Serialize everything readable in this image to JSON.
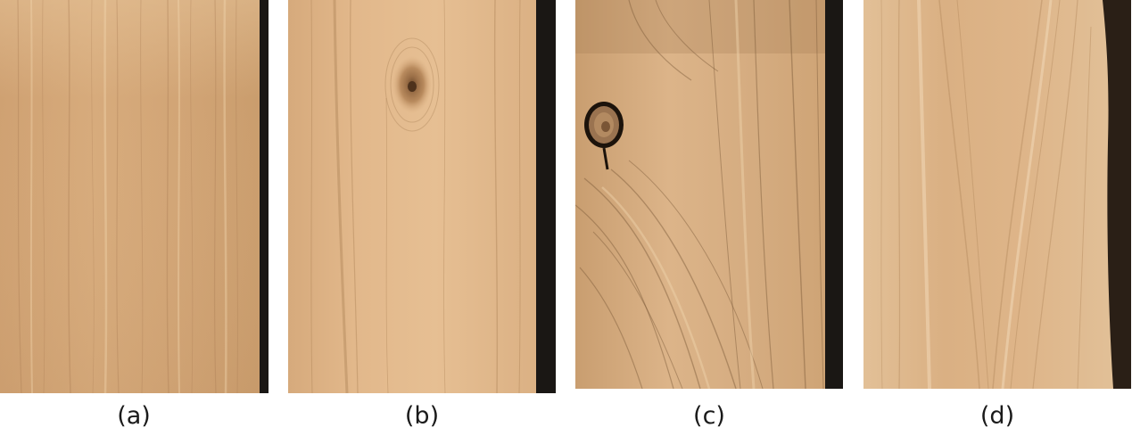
{
  "figure": {
    "panels": [
      {
        "caption": "(a)",
        "description": "clear-grain-board",
        "colors": {
          "base": "#d3a677",
          "light": "#e3bf93",
          "dark": "#a87c52",
          "edge": "#1a1714"
        }
      },
      {
        "caption": "(b)",
        "description": "board-with-small-knot",
        "colors": {
          "base": "#deb387",
          "light": "#ebc99f",
          "dark": "#b58a5e",
          "edge": "#1a1714"
        }
      },
      {
        "caption": "(c)",
        "description": "board-with-dark-knot",
        "colors": {
          "base": "#d2aa7e",
          "light": "#e3c49c",
          "dark": "#8a6846",
          "edge": "#1a1714"
        }
      },
      {
        "caption": "(d)",
        "description": "board-with-cathedral-grain",
        "colors": {
          "base": "#dcb387",
          "light": "#ecd0ab",
          "dark": "#b4895d",
          "edge": "#1a1714"
        }
      }
    ]
  }
}
